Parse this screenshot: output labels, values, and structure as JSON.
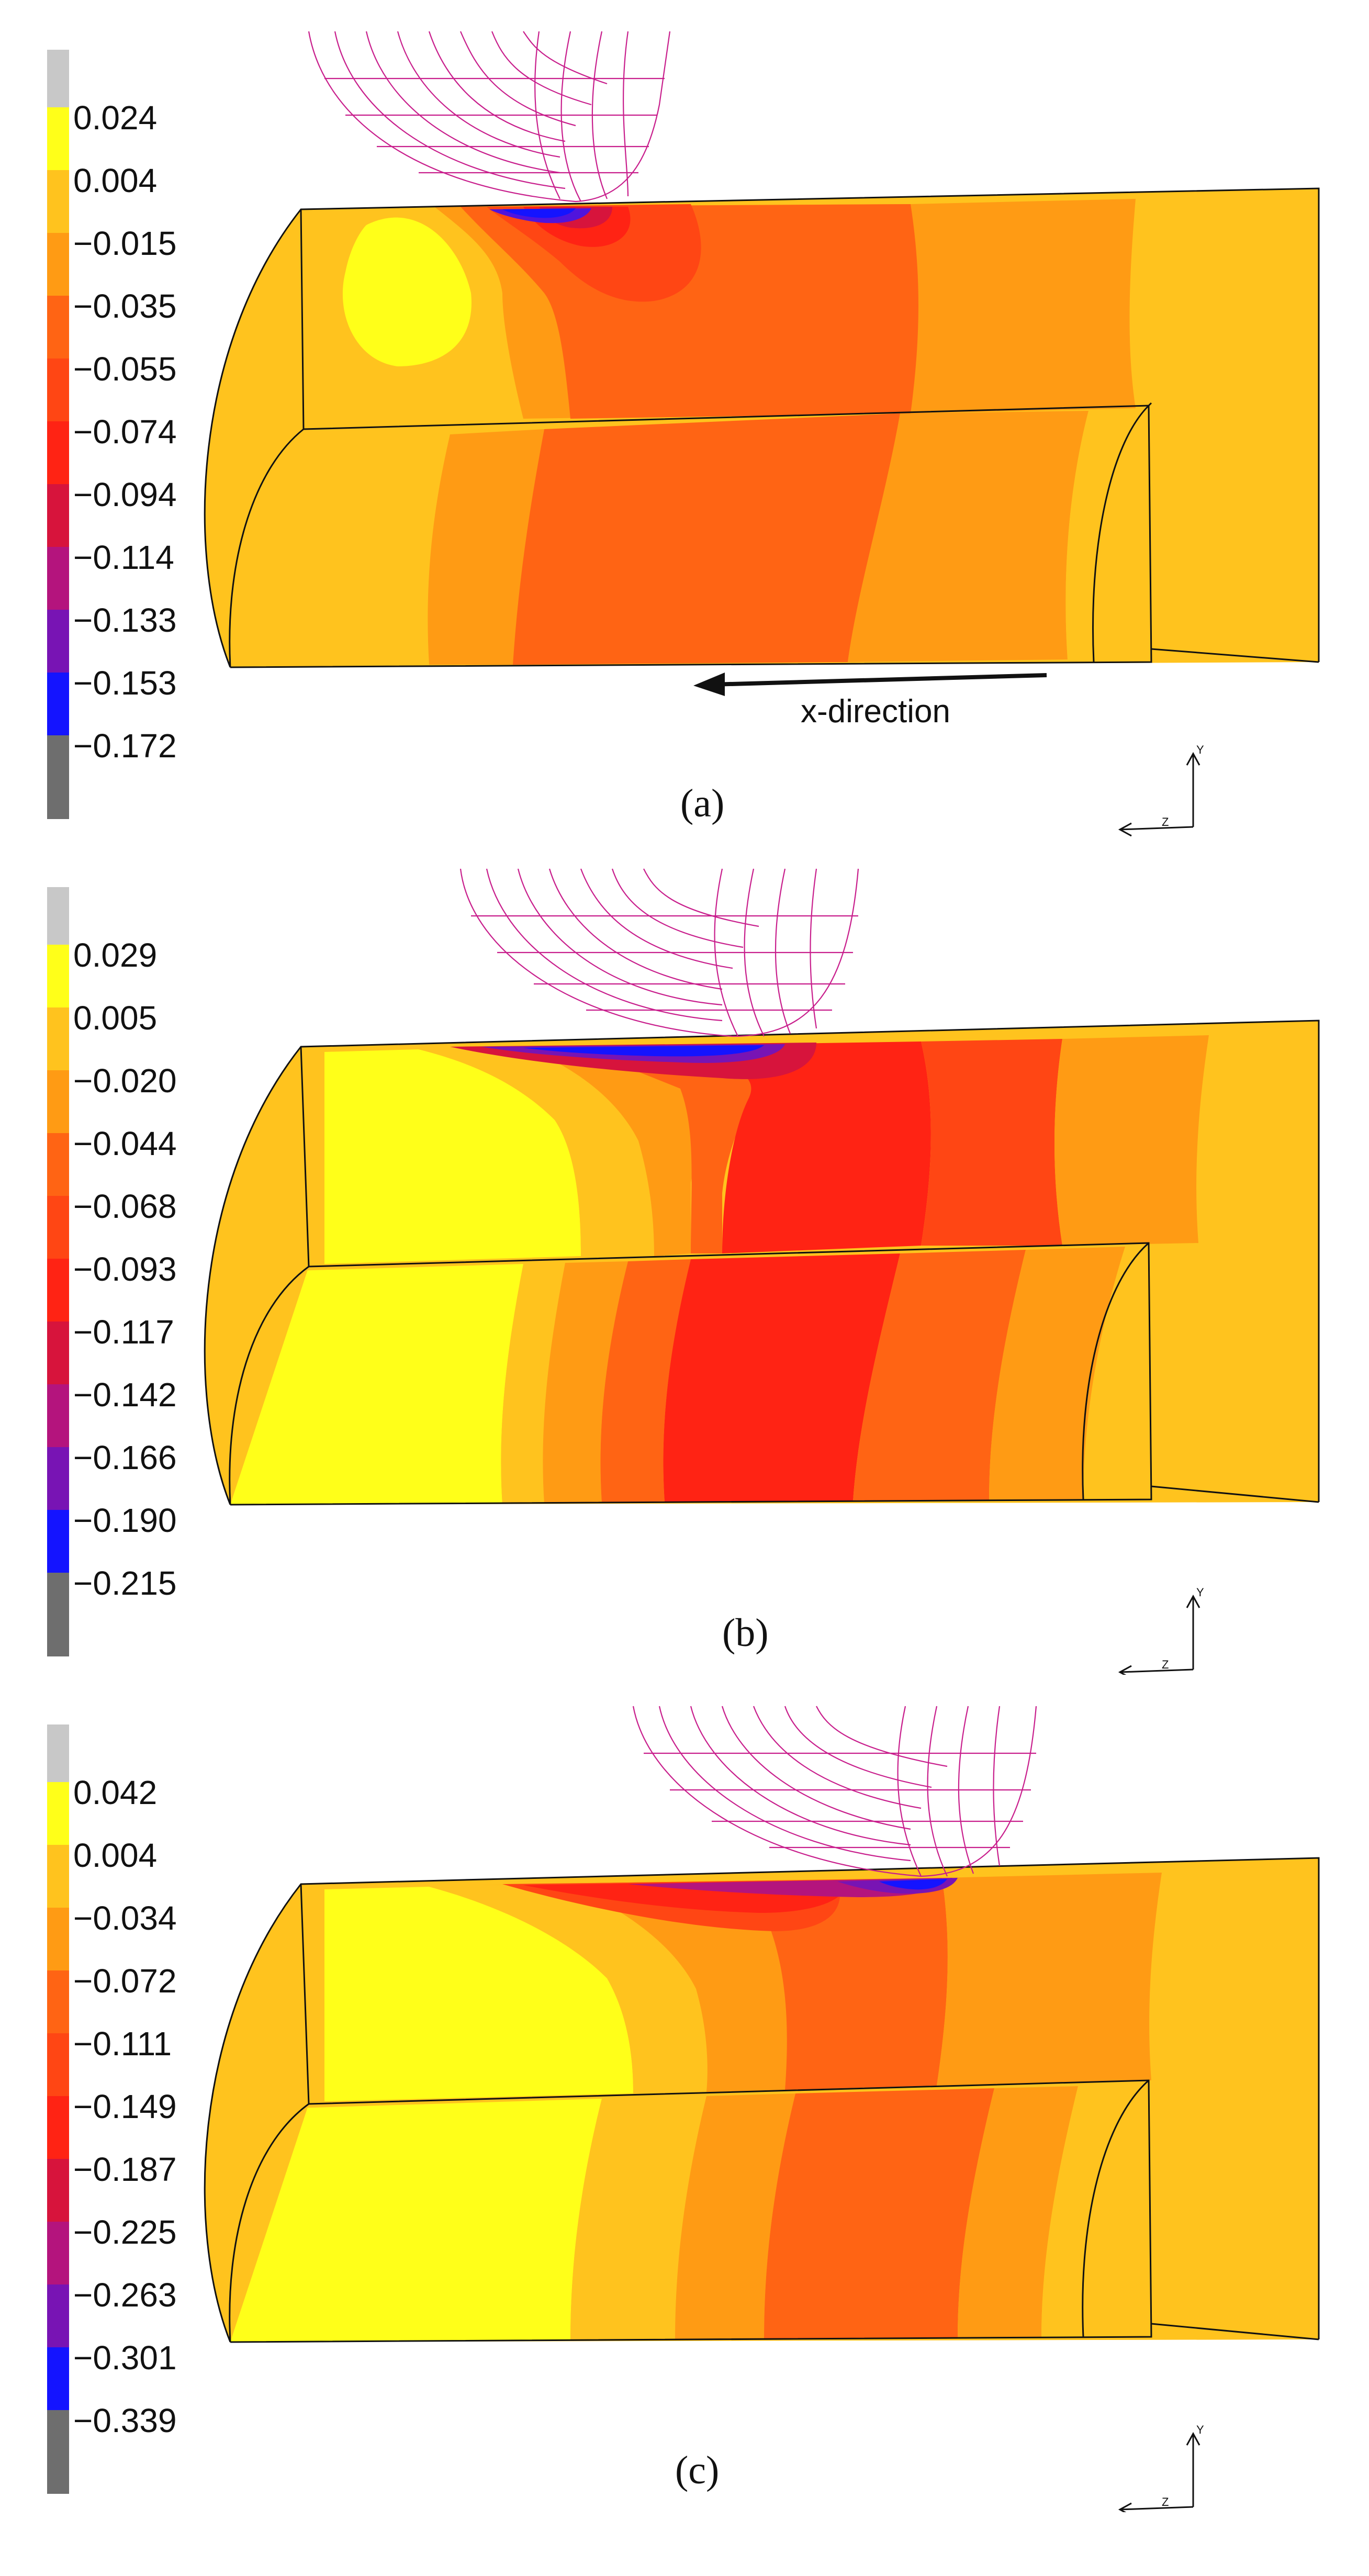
{
  "figure": {
    "colors": {
      "gray_top": "#c8c8c8",
      "yellow": "#ffff19",
      "light_orange": "#ffc31e",
      "orange": "#ff9b14",
      "dark_orange": "#ff6414",
      "red_orange": "#ff4614",
      "red": "#ff2314",
      "crimson": "#d7143c",
      "magenta": "#b4147d",
      "purple": "#7814b4",
      "violet": "#5014dc",
      "blue": "#1414ff",
      "gray_bottom": "#6e6e6e",
      "tool_mesh": "#c81e8c",
      "outline": "#111111"
    },
    "direction_label": "x-direction",
    "axis_label_y": "Y",
    "axis_label_z": "Z",
    "panels": [
      {
        "caption": "(a)",
        "legend": [
          "0.024",
          "0.004",
          "−0.015",
          "−0.035",
          "−0.055",
          "−0.074",
          "−0.094",
          "−0.114",
          "−0.133",
          "−0.153",
          "−0.172"
        ]
      },
      {
        "caption": "(b)",
        "legend": [
          "0.029",
          "0.005",
          "−0.020",
          "−0.044",
          "−0.068",
          "−0.093",
          "−0.117",
          "−0.142",
          "−0.166",
          "−0.190",
          "−0.215"
        ]
      },
      {
        "caption": "(c)",
        "legend": [
          "0.042",
          "0.004",
          "−0.034",
          "−0.072",
          "−0.111",
          "−0.149",
          "−0.187",
          "−0.225",
          "−0.263",
          "−0.301",
          "−0.339"
        ]
      }
    ]
  }
}
